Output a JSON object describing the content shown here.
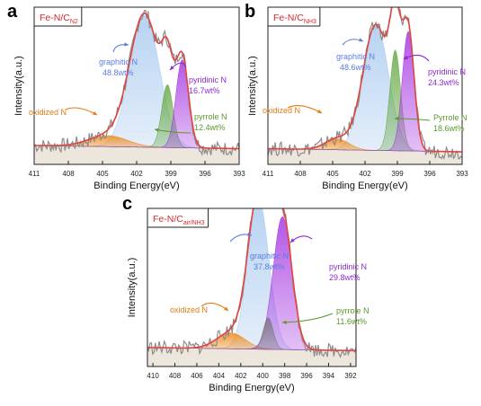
{
  "panels": [
    {
      "letter": "a"
    },
    {
      "letter": "b"
    },
    {
      "letter": "c"
    }
  ],
  "chart_data": [
    {
      "type": "line",
      "title": "Fe-N/C",
      "title_sub": "N2",
      "xlabel": "Binding Energy(eV)",
      "ylabel": "Intensity(a.u.)",
      "xlim": [
        411,
        393
      ],
      "xticks": [
        411,
        408,
        405,
        402,
        399,
        396,
        393
      ],
      "xtick_labels": [
        "411",
        "408",
        "405",
        "402",
        "399",
        "396",
        "393"
      ],
      "ylim": [
        0,
        1
      ],
      "grid": false,
      "colors": {
        "pyridinic": "#a22fe0",
        "pyrrole": "#5ea43a",
        "graphitic": "#a6c8ef",
        "oxidized": "#f08a1c",
        "envelope": "#e0453f",
        "raw": "#8c8c8c",
        "baseline": "#c8b79e"
      },
      "baseline": [
        0.12,
        0.1
      ],
      "series": [
        {
          "key": "pyridinic",
          "center": 398.0,
          "height": 0.56,
          "width": 0.55
        },
        {
          "key": "pyrrole",
          "center": 399.3,
          "height": 0.4,
          "width": 0.5
        },
        {
          "key": "graphitic",
          "center": 401.3,
          "height": 0.84,
          "width": 1.3
        },
        {
          "key": "oxidized",
          "center": 404.5,
          "height": 0.07,
          "width": 1.7
        }
      ],
      "annotations": [
        {
          "text": "graphitic N",
          "value": "48.8wt%"
        },
        {
          "text": "pyridinic N",
          "value": "16.7wt%"
        },
        {
          "text": "pyrrole N",
          "value": "12.4wt%"
        },
        {
          "text": "oxidized N",
          "value": ""
        }
      ]
    },
    {
      "type": "line",
      "title": "Fe-N/C",
      "title_sub": "NH3",
      "xlabel": "Binding Energy(eV)",
      "ylabel": "Intensity(a.u.)",
      "xlim": [
        411,
        393
      ],
      "xticks": [
        411,
        408,
        405,
        402,
        399,
        396,
        393
      ],
      "xtick_labels": [
        "411",
        "408",
        "405",
        "402",
        "399",
        "396",
        "393"
      ],
      "ylim": [
        0,
        1
      ],
      "grid": false,
      "colors": {
        "pyridinic": "#a22fe0",
        "pyrrole": "#5ea43a",
        "graphitic": "#a6c8ef",
        "oxidized": "#f08a1c",
        "envelope": "#e0453f",
        "raw": "#8c8c8c",
        "baseline": "#c8b79e"
      },
      "baseline": [
        0.1,
        0.08
      ],
      "series": [
        {
          "key": "pyridinic",
          "center": 398.0,
          "height": 0.76,
          "width": 0.55
        },
        {
          "key": "pyrrole",
          "center": 399.2,
          "height": 0.64,
          "width": 0.5
        },
        {
          "key": "graphitic",
          "center": 401.0,
          "height": 0.8,
          "width": 1.2
        },
        {
          "key": "oxidized",
          "center": 404.6,
          "height": 0.07,
          "width": 1.1
        }
      ],
      "annotations": [
        {
          "text": "graphitic N",
          "value": "48.6wt%"
        },
        {
          "text": "pyridinic N",
          "value": "24.3wt%"
        },
        {
          "text": "Pyrrole N",
          "value": "18.6wt%"
        },
        {
          "text": "oxidized N",
          "value": ""
        }
      ]
    },
    {
      "type": "line",
      "title": "Fe-N/C",
      "title_sub": "air/NH3",
      "xlabel": "Binding Energy(eV)",
      "ylabel": "Intensity(a.u.)",
      "xlim": [
        410.5,
        391.5
      ],
      "xticks": [
        410,
        408,
        406,
        404,
        402,
        400,
        398,
        396,
        394,
        392
      ],
      "xtick_labels": [
        "410",
        "408",
        "406",
        "404",
        "402",
        "400",
        "398",
        "396",
        "394",
        "392"
      ],
      "ylim": [
        0,
        1
      ],
      "grid": false,
      "colors": {
        "pyridinic": "#a22fe0",
        "pyrrole": "#5ea43a",
        "graphitic": "#a6c8ef",
        "oxidized": "#f08a1c",
        "envelope": "#e0453f",
        "raw": "#8c8c8c",
        "baseline": "#c8b79e"
      },
      "baseline": [
        0.12,
        0.1
      ],
      "series": [
        {
          "key": "pyridinic",
          "center": 398.2,
          "height": 0.84,
          "width": 0.85
        },
        {
          "key": "pyrrole",
          "center": 399.5,
          "height": 0.2,
          "width": 0.45
        },
        {
          "key": "graphitic",
          "center": 400.4,
          "height": 0.96,
          "width": 0.95
        },
        {
          "key": "oxidized",
          "center": 402.9,
          "height": 0.1,
          "width": 1.3
        }
      ],
      "annotations": [
        {
          "text": "graphitic N",
          "value": "37.8wt%"
        },
        {
          "text": "pyridinic N",
          "value": "29.8wt%"
        },
        {
          "text": "pyrrole N",
          "value": "11.6wt%"
        },
        {
          "text": "oxidized N",
          "value": ""
        }
      ]
    }
  ]
}
